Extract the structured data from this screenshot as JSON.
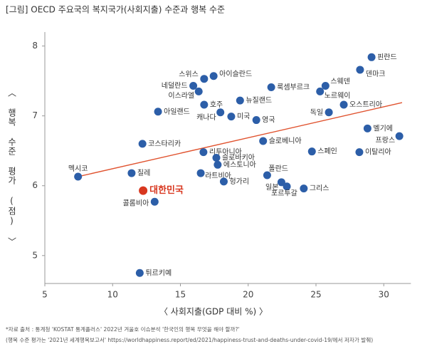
{
  "chart_data": {
    "type": "scatter",
    "title": "[그림] OECD 주요국의 복지국가(사회지출) 수준과 행복 수준",
    "x_label": "〈 사회지출(GDP 대비 %) 〉",
    "y_label": "〈 행복 수준 평가 (점) 〉",
    "xlim": [
      5,
      32
    ],
    "ylim": [
      4.6,
      8.2
    ],
    "xticks": [
      5,
      10,
      15,
      20,
      25,
      30
    ],
    "yticks": [
      5,
      6,
      7,
      8
    ],
    "series": [
      {
        "color": "#2c5ea8",
        "labels": [
          "핀란드",
          "덴마크",
          "스웨덴",
          "노르웨이",
          "오스트리아",
          "독일",
          "벨기에",
          "프랑스",
          "이탈리아",
          "스페인",
          "룩셈부르크",
          "뉴질랜드",
          "영국",
          "미국",
          "캐나다",
          "호주",
          "아이슬란드",
          "스위스",
          "네덜란드",
          "이스라엘",
          "아일랜드",
          "코스타리카",
          "리투아니아",
          "슬로바키아",
          "에스토니아",
          "라트비아",
          "헝가리",
          "슬로베니아",
          "폴란드",
          "일본",
          "포르투갈",
          "그리스",
          "멕시코",
          "칠레",
          "콜롬비아",
          "튀르키예"
        ],
        "x": [
          29.1,
          28.25,
          25.7,
          25.3,
          27.05,
          25.95,
          28.8,
          31.15,
          28.2,
          24.7,
          21.7,
          19.4,
          20.6,
          18.75,
          17.95,
          16.75,
          17.45,
          16.75,
          15.95,
          16.35,
          13.35,
          12.2,
          16.7,
          17.65,
          17.75,
          16.5,
          18.2,
          21.1,
          21.4,
          22.45,
          22.85,
          24.1,
          7.45,
          11.4,
          13.1,
          12.0
        ],
        "y": [
          7.84,
          7.66,
          7.43,
          7.35,
          7.16,
          7.05,
          6.82,
          6.71,
          6.48,
          6.49,
          7.41,
          7.22,
          6.94,
          6.99,
          7.05,
          7.16,
          7.57,
          7.53,
          7.43,
          7.35,
          7.06,
          6.6,
          6.48,
          6.4,
          6.3,
          6.18,
          6.06,
          6.64,
          6.15,
          6.05,
          5.99,
          5.96,
          6.13,
          6.18,
          5.77,
          4.75
        ]
      },
      {
        "color": "#d8371f",
        "labels": [
          "대한민국"
        ],
        "x": [
          12.25
        ],
        "y": [
          5.93
        ]
      }
    ],
    "trendline": {
      "color": "#e0522e",
      "x": [
        7.45,
        31.35
      ],
      "y": [
        6.13,
        7.19
      ]
    },
    "notes": [
      "*자료 출처 : 통계청 'KOSTAT 통계플러스' 2022년 겨울호 이슈분석 '한국인의 행복 무엇을 해야 할까?'",
      "(행복 수준 평가는 '2021년 세계행복보고서' https://worldhappiness.report/ed/2021/happiness-trust-and-deaths-under-covid-19/에서 저자가 발췌)"
    ]
  }
}
